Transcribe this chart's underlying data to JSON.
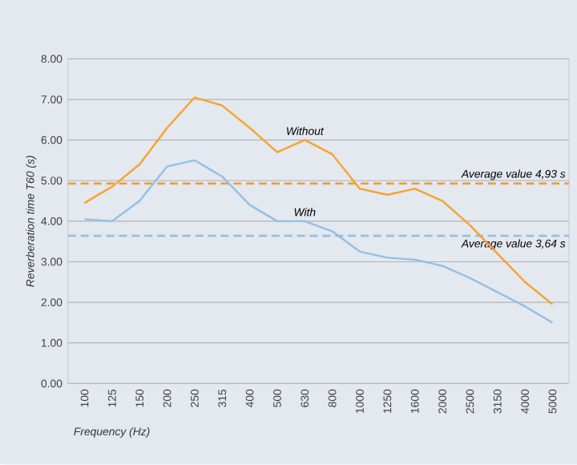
{
  "chart_data": {
    "type": "line",
    "xlabel": "Frequency (Hz)",
    "ylabel": "Reverberation time T60 (s)",
    "categories": [
      "100",
      "125",
      "150",
      "200",
      "250",
      "315",
      "400",
      "500",
      "630",
      "800",
      "1000",
      "1250",
      "1600",
      "2000",
      "2500",
      "3150",
      "4000",
      "5000"
    ],
    "series": [
      {
        "name": "Without",
        "color": "#f5a42a",
        "values": [
          4.45,
          4.85,
          5.4,
          6.3,
          7.05,
          6.85,
          6.3,
          5.7,
          6.0,
          5.65,
          4.8,
          4.65,
          4.8,
          4.5,
          3.9,
          3.2,
          2.5,
          1.95
        ]
      },
      {
        "name": "With",
        "color": "#92c0e4",
        "values": [
          4.05,
          4.0,
          4.5,
          5.35,
          5.5,
          5.1,
          4.4,
          4.0,
          4.0,
          3.75,
          3.25,
          3.1,
          3.05,
          2.9,
          2.6,
          2.25,
          1.9,
          1.5
        ]
      }
    ],
    "ylim": [
      0,
      8
    ],
    "yticks": [
      {
        "value": 0,
        "label": "0.00"
      },
      {
        "value": 1,
        "label": "1.00"
      },
      {
        "value": 2,
        "label": "2.00"
      },
      {
        "value": 3,
        "label": "3.00"
      },
      {
        "value": 4,
        "label": "4.00"
      },
      {
        "value": 5,
        "label": "5.00"
      },
      {
        "value": 6,
        "label": "6.00"
      },
      {
        "value": 7,
        "label": "7.00"
      },
      {
        "value": 8,
        "label": "8.00"
      }
    ],
    "grid": "y",
    "marker": "none",
    "line_style": "solid",
    "ref_lines": [
      {
        "axis": "y",
        "value": 4.93,
        "label": "Average value 4,93 s",
        "color": "#e8a040",
        "line_style": "dashed"
      },
      {
        "axis": "y",
        "value": 3.64,
        "label": "Average value 3,64 s",
        "color": "#92c0e4",
        "line_style": "dashed"
      }
    ]
  }
}
